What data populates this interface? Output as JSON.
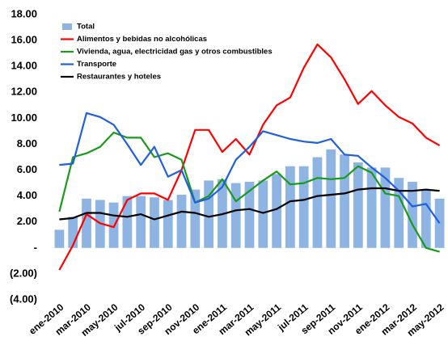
{
  "chart_data": {
    "type": "bar",
    "categories": [
      "ene-2010",
      null,
      "mar-2010",
      null,
      "may-2010",
      null,
      "jul-2010",
      null,
      "sep-2010",
      null,
      "nov-2010",
      null,
      "ene-2011",
      null,
      "mar-2011",
      null,
      "may-2011",
      null,
      "jul-2011",
      null,
      "sep-2011",
      null,
      "nov-2011",
      null,
      "ene-2012",
      null,
      "mar-2012",
      null,
      "may-2012"
    ],
    "series": [
      {
        "name": "Total",
        "type": "bar",
        "color": "#8db4e2",
        "values": [
          1.4,
          2.4,
          3.8,
          3.7,
          3.5,
          4.0,
          4.0,
          3.9,
          3.7,
          4.1,
          4.5,
          5.2,
          5.3,
          5.0,
          5.1,
          5.2,
          5.7,
          6.3,
          6.3,
          7.0,
          7.6,
          7.2,
          6.6,
          6.2,
          6.2,
          5.4,
          5.1,
          4.5,
          3.8
        ]
      },
      {
        "name": "Alimentos y bebidas no alcohólicas",
        "type": "line",
        "color": "#ff0000",
        "values": [
          -1.7,
          0.2,
          2.6,
          1.9,
          1.6,
          3.7,
          4.2,
          4.2,
          3.7,
          6.0,
          9.1,
          9.1,
          7.4,
          8.4,
          7.2,
          9.5,
          11.0,
          11.6,
          13.9,
          15.7,
          14.7,
          13.0,
          11.1,
          12.1,
          11.0,
          10.1,
          9.6,
          8.5,
          7.9
        ]
      },
      {
        "name": "Vivienda, agua, electricidad gas y otros combustibles",
        "type": "line",
        "color": "#1a9a1a",
        "values": [
          2.8,
          7.0,
          7.3,
          7.8,
          8.9,
          8.5,
          8.5,
          7.0,
          7.3,
          6.8,
          3.5,
          4.0,
          5.3,
          3.6,
          4.4,
          5.2,
          5.9,
          4.9,
          5.0,
          5.4,
          5.3,
          5.4,
          6.3,
          5.8,
          4.2,
          4.0,
          1.8,
          0,
          -0.3
        ]
      },
      {
        "name": "Transporte",
        "type": "line",
        "color": "#1f5fe0",
        "values": [
          6.4,
          6.5,
          10.4,
          10.1,
          9.5,
          8.0,
          6.4,
          7.8,
          5.5,
          6.0,
          3.5,
          3.8,
          4.7,
          6.8,
          7.8,
          9.0,
          8.7,
          8.4,
          8.2,
          8.1,
          8.4,
          7.2,
          7.1,
          6.2,
          5.4,
          4.4,
          3.2,
          3.4,
          1.9
        ]
      },
      {
        "name": "Restaurantes y hoteles",
        "type": "line",
        "color": "#000000",
        "values": [
          2.2,
          2.3,
          2.7,
          2.7,
          2.5,
          2.4,
          2.6,
          2.2,
          2.5,
          2.8,
          2.7,
          2.4,
          2.6,
          2.9,
          3.0,
          2.7,
          3.0,
          3.6,
          3.7,
          4.0,
          4.1,
          4.2,
          4.5,
          4.6,
          4.6,
          4.4,
          4.4,
          4.5,
          4.4
        ]
      }
    ],
    "ylim": [
      -4,
      18
    ],
    "yticks": [
      {
        "value": 18,
        "label": "18.00"
      },
      {
        "value": 16,
        "label": "16.00"
      },
      {
        "value": 14,
        "label": "14.00"
      },
      {
        "value": 12,
        "label": "12.00"
      },
      {
        "value": 10,
        "label": "10.00"
      },
      {
        "value": 8,
        "label": "8.00"
      },
      {
        "value": 6,
        "label": "6.00"
      },
      {
        "value": 4,
        "label": "4.00"
      },
      {
        "value": 2,
        "label": "2.00"
      },
      {
        "value": 0,
        "label": "-"
      },
      {
        "value": -2,
        "label": "(2.00)"
      },
      {
        "value": -4,
        "label": "(4.00)"
      }
    ],
    "legend": "upper left"
  }
}
